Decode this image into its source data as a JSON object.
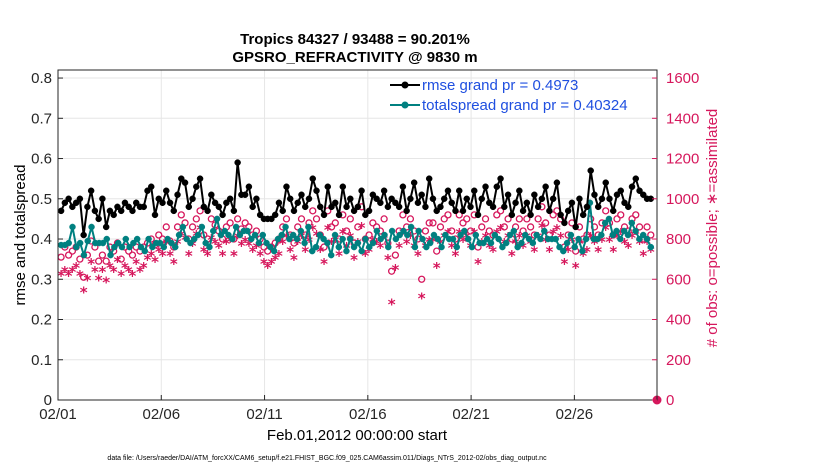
{
  "chart_data": {
    "type": "line",
    "title": "Tropics 84327 / 93488 = 90.201%",
    "subtitle": "GPSRO_REFRACTIVITY @ 9830 m",
    "xlabel": "Feb.01,2012 00:00:00 start",
    "ylabel": "rmse and totalspread",
    "y2label": "# of obs: o=possible; ∗=assimilated",
    "footnote": "data file: /Users/raeder/DAI/ATM_forcXX/CAM6_setup/f.e21.FHIST_BGC.f09_025.CAM6assim.011/Diags_NTrS_2012-02/obs_diag_output.nc",
    "x_tick_labels": [
      "02/01",
      "02/06",
      "02/11",
      "02/16",
      "02/21",
      "02/26"
    ],
    "x_tick_days": [
      0,
      5,
      10,
      15,
      20,
      25
    ],
    "xlim": [
      0,
      29
    ],
    "ylim": [
      0,
      0.82
    ],
    "y_tick_values": [
      0,
      0.1,
      0.2,
      0.3,
      0.4,
      0.5,
      0.6,
      0.7,
      0.8
    ],
    "y_tick_labels": [
      "0",
      "0.1",
      "0.2",
      "0.3",
      "0.4",
      "0.5",
      "0.6",
      "0.7",
      "0.8"
    ],
    "y2lim": [
      0,
      1640
    ],
    "y2_tick_values": [
      0,
      200,
      400,
      600,
      800,
      1000,
      1200,
      1400,
      1600
    ],
    "y2_tick_labels": [
      "0",
      "200",
      "400",
      "600",
      "800",
      "1000",
      "1200",
      "1400",
      "1600"
    ],
    "grid": true,
    "legend": [
      "rmse grand pr = 0.4973",
      "totalspread grand pr = 0.40324"
    ],
    "legend_location": "top-right",
    "colors": {
      "rmse": "#000000",
      "spread": "#008080",
      "obs": "#d6175c",
      "legend_text": "#1f4fe0"
    },
    "series": [
      {
        "name": "rmse",
        "marker": "filled-circle",
        "values": [
          0.47,
          0.49,
          0.5,
          0.48,
          0.49,
          0.5,
          0.41,
          0.48,
          0.52,
          0.47,
          0.45,
          0.5,
          0.43,
          0.47,
          0.46,
          0.48,
          0.47,
          0.49,
          0.48,
          0.47,
          0.49,
          0.48,
          0.48,
          0.52,
          0.53,
          0.46,
          0.5,
          0.49,
          0.52,
          0.49,
          0.47,
          0.51,
          0.55,
          0.54,
          0.48,
          0.5,
          0.53,
          0.55,
          0.48,
          0.47,
          0.51,
          0.49,
          0.48,
          0.46,
          0.49,
          0.5,
          0.47,
          0.59,
          0.51,
          0.51,
          0.53,
          0.48,
          0.5,
          0.46,
          0.45,
          0.45,
          0.45,
          0.46,
          0.49,
          0.47,
          0.53,
          0.5,
          0.47,
          0.49,
          0.51,
          0.48,
          0.5,
          0.55,
          0.52,
          0.48,
          0.46,
          0.53,
          0.48,
          0.49,
          0.46,
          0.53,
          0.48,
          0.5,
          0.47,
          0.48,
          0.52,
          0.46,
          0.47,
          0.51,
          0.5,
          0.49,
          0.52,
          0.48,
          0.5,
          0.49,
          0.48,
          0.53,
          0.47,
          0.5,
          0.54,
          0.49,
          0.51,
          0.48,
          0.55,
          0.5,
          0.47,
          0.48,
          0.5,
          0.52,
          0.49,
          0.47,
          0.52,
          0.47,
          0.5,
          0.48,
          0.52,
          0.46,
          0.5,
          0.53,
          0.49,
          0.48,
          0.53,
          0.55,
          0.48,
          0.51,
          0.46,
          0.49,
          0.52,
          0.47,
          0.49,
          0.46,
          0.51,
          0.48,
          0.5,
          0.53,
          0.47,
          0.5,
          0.54,
          0.46,
          0.44,
          0.47,
          0.49,
          0.43,
          0.5,
          0.46,
          0.48,
          0.57,
          0.51,
          0.48,
          0.5,
          0.54,
          0.5,
          0.47,
          0.51,
          0.52,
          0.49,
          0.48,
          0.53,
          0.55,
          0.52,
          0.51,
          0.5,
          0.5
        ]
      },
      {
        "name": "totalspread",
        "marker": "filled-circle",
        "values": [
          0.385,
          0.385,
          0.39,
          0.43,
          0.38,
          0.39,
          0.36,
          0.395,
          0.43,
          0.39,
          0.39,
          0.39,
          0.4,
          0.36,
          0.38,
          0.39,
          0.38,
          0.4,
          0.38,
          0.39,
          0.4,
          0.38,
          0.37,
          0.4,
          0.38,
          0.39,
          0.39,
          0.38,
          0.4,
          0.39,
          0.38,
          0.41,
          0.43,
          0.4,
          0.39,
          0.4,
          0.41,
          0.43,
          0.39,
          0.38,
          0.42,
          0.45,
          0.41,
          0.42,
          0.41,
          0.4,
          0.43,
          0.41,
          0.42,
          0.42,
          0.4,
          0.41,
          0.39,
          0.41,
          0.39,
          0.38,
          0.37,
          0.4,
          0.41,
          0.43,
          0.4,
          0.41,
          0.4,
          0.42,
          0.39,
          0.43,
          0.37,
          0.38,
          0.41,
          0.4,
          0.39,
          0.36,
          0.41,
          0.38,
          0.4,
          0.37,
          0.4,
          0.38,
          0.39,
          0.37,
          0.4,
          0.38,
          0.39,
          0.42,
          0.4,
          0.41,
          0.38,
          0.42,
          0.4,
          0.41,
          0.42,
          0.41,
          0.43,
          0.38,
          0.42,
          0.4,
          0.38,
          0.39,
          0.41,
          0.4,
          0.38,
          0.41,
          0.4,
          0.4,
          0.38,
          0.41,
          0.42,
          0.4,
          0.38,
          0.41,
          0.39,
          0.39,
          0.4,
          0.39,
          0.41,
          0.4,
          0.38,
          0.39,
          0.41,
          0.42,
          0.38,
          0.39,
          0.41,
          0.4,
          0.39,
          0.41,
          0.4,
          0.42,
          0.4,
          0.4,
          0.4,
          0.38,
          0.37,
          0.39,
          0.41,
          0.38,
          0.4,
          0.37,
          0.4,
          0.49,
          0.4,
          0.4,
          0.41,
          0.44,
          0.45,
          0.41,
          0.42,
          0.4,
          0.42,
          0.41,
          0.44,
          0.42,
          0.4,
          0.41,
          0.4,
          0.38
        ]
      },
      {
        "name": "obs possible",
        "marker": "open-circle",
        "axis": "right",
        "values": [
          710,
          760,
          720,
          740,
          760,
          700,
          610,
          720,
          790,
          760,
          690,
          720,
          690,
          760,
          740,
          780,
          700,
          760,
          740,
          720,
          760,
          740,
          760,
          780,
          800,
          770,
          820,
          800,
          860,
          790,
          760,
          860,
          920,
          880,
          800,
          860,
          900,
          940,
          820,
          800,
          900,
          870,
          840,
          800,
          860,
          880,
          800,
          900,
          850,
          880,
          860,
          820,
          840,
          800,
          760,
          740,
          760,
          780,
          800,
          860,
          900,
          820,
          780,
          860,
          900,
          820,
          880,
          940,
          900,
          820,
          760,
          940,
          860,
          880,
          800,
          920,
          840,
          900,
          780,
          860,
          960,
          800,
          820,
          880,
          860,
          840,
          900,
          780,
          640,
          720,
          840,
          920,
          860,
          900,
          840,
          800,
          600,
          840,
          880,
          880,
          740,
          860,
          900,
          920,
          840,
          800,
          920,
          880,
          900,
          840,
          920,
          760,
          860,
          900,
          840,
          820,
          920,
          940,
          860,
          900,
          800,
          860,
          900,
          840,
          900,
          860,
          820,
          900,
          960,
          880,
          820,
          920,
          940,
          900,
          760,
          820,
          880,
          740,
          860,
          800,
          820,
          900,
          860,
          820,
          880,
          940,
          880,
          820,
          900,
          920,
          860,
          840,
          900,
          920,
          860,
          800,
          860,
          820
        ]
      },
      {
        "name": "obs assimilated",
        "marker": "asterisk",
        "axis": "right",
        "values": [
          620,
          640,
          620,
          640,
          660,
          620,
          540,
          600,
          680,
          640,
          600,
          640,
          590,
          660,
          640,
          690,
          620,
          660,
          640,
          620,
          680,
          640,
          660,
          700,
          720,
          690,
          740,
          720,
          780,
          720,
          680,
          780,
          820,
          800,
          720,
          770,
          820,
          850,
          740,
          720,
          800,
          780,
          760,
          720,
          780,
          790,
          720,
          810,
          770,
          790,
          770,
          740,
          760,
          720,
          680,
          660,
          680,
          700,
          720,
          780,
          810,
          740,
          700,
          780,
          810,
          740,
          790,
          850,
          820,
          740,
          680,
          850,
          780,
          790,
          720,
          830,
          760,
          810,
          700,
          780,
          860,
          720,
          740,
          790,
          780,
          760,
          810,
          700,
          480,
          650,
          760,
          830,
          780,
          810,
          760,
          720,
          510,
          760,
          790,
          790,
          660,
          780,
          810,
          830,
          760,
          720,
          830,
          790,
          810,
          760,
          830,
          680,
          780,
          810,
          760,
          740,
          830,
          850,
          780,
          810,
          720,
          780,
          810,
          760,
          810,
          780,
          740,
          810,
          860,
          790,
          740,
          830,
          850,
          810,
          680,
          740,
          790,
          660,
          780,
          720,
          740,
          810,
          780,
          740,
          790,
          850,
          790,
          740,
          810,
          830,
          780,
          760,
          810,
          830,
          780,
          720,
          780,
          740
        ]
      }
    ]
  }
}
